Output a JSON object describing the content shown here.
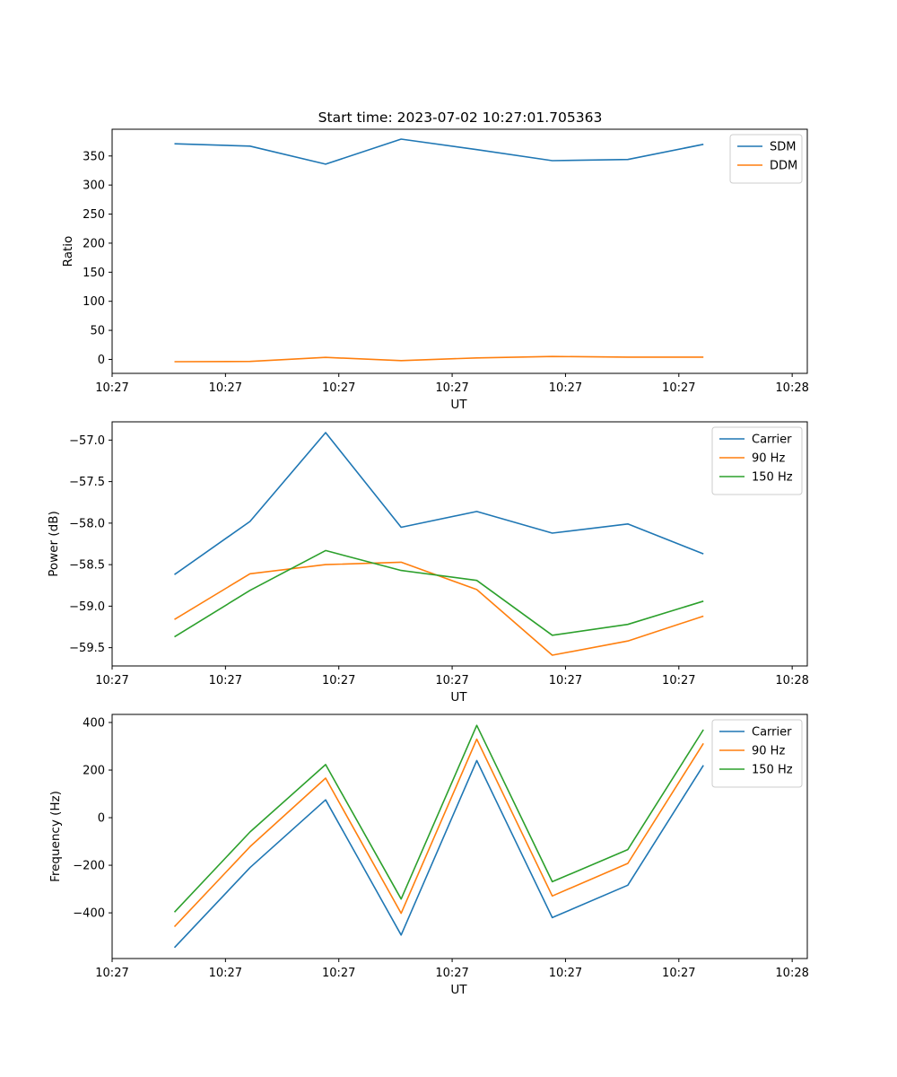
{
  "title": "Start time: 2023-07-02 10:27:01.705363",
  "chart_data": [
    {
      "type": "line",
      "xlabel": "UT",
      "ylabel": "Ratio",
      "x": [
        1,
        2,
        3,
        4,
        5,
        6,
        7,
        8
      ],
      "xlim": [
        0.175,
        9.375
      ],
      "xticks": [
        0.175,
        1.675,
        3.175,
        4.675,
        6.175,
        7.675,
        9.175
      ],
      "xtick_labels": [
        "10:27",
        "10:27",
        "10:27",
        "10:27",
        "10:27",
        "10:27",
        "10:28"
      ],
      "ylim": [
        -24,
        396
      ],
      "yticks": [
        0,
        50,
        100,
        150,
        200,
        250,
        300,
        350
      ],
      "ytick_labels": [
        "0",
        "50",
        "100",
        "150",
        "200",
        "250",
        "300",
        "350"
      ],
      "legend": "top-right",
      "series": [
        {
          "name": "SDM",
          "color": "#1f77b4",
          "values": [
            371,
            367,
            336,
            379,
            361,
            342,
            344,
            370
          ]
        },
        {
          "name": "DDM",
          "color": "#ff7f0e",
          "values": [
            -4,
            -3.5,
            3.5,
            -2,
            2.5,
            5,
            4,
            4
          ]
        }
      ]
    },
    {
      "type": "line",
      "xlabel": "UT",
      "ylabel": "Power (dB)",
      "x": [
        1,
        2,
        3,
        4,
        5,
        6,
        7,
        8
      ],
      "xlim": [
        0.175,
        9.375
      ],
      "xticks": [
        0.175,
        1.675,
        3.175,
        4.675,
        6.175,
        7.675,
        9.175
      ],
      "xtick_labels": [
        "10:27",
        "10:27",
        "10:27",
        "10:27",
        "10:27",
        "10:27",
        "10:28"
      ],
      "ylim": [
        -59.72,
        -56.78
      ],
      "yticks": [
        -59.5,
        -59.0,
        -58.5,
        -58.0,
        -57.5,
        -57.0
      ],
      "ytick_labels": [
        "−59.5",
        "−59.0",
        "−58.5",
        "−58.0",
        "−57.5",
        "−57.0"
      ],
      "legend": "top-right",
      "series": [
        {
          "name": "Carrier",
          "color": "#1f77b4",
          "values": [
            -58.62,
            -57.98,
            -56.91,
            -58.05,
            -57.86,
            -58.12,
            -58.01,
            -58.37
          ]
        },
        {
          "name": "90 Hz",
          "color": "#ff7f0e",
          "values": [
            -59.16,
            -58.61,
            -58.5,
            -58.47,
            -58.8,
            -59.59,
            -59.42,
            -59.12
          ]
        },
        {
          "name": "150 Hz",
          "color": "#2ca02c",
          "values": [
            -59.37,
            -58.81,
            -58.33,
            -58.57,
            -58.69,
            -59.35,
            -59.22,
            -58.94
          ]
        }
      ]
    },
    {
      "type": "line",
      "xlabel": "UT",
      "ylabel": "Frequency (Hz)",
      "x": [
        1,
        2,
        3,
        4,
        5,
        6,
        7,
        8
      ],
      "xlim": [
        0.175,
        9.375
      ],
      "xticks": [
        0.175,
        1.675,
        3.175,
        4.675,
        6.175,
        7.675,
        9.175
      ],
      "xtick_labels": [
        "10:27",
        "10:27",
        "10:27",
        "10:27",
        "10:27",
        "10:27",
        "10:28"
      ],
      "ylim": [
        -592,
        434
      ],
      "yticks": [
        -400,
        -200,
        0,
        200,
        400
      ],
      "ytick_labels": [
        "−400",
        "−200",
        "0",
        "200",
        "400"
      ],
      "legend": "top-right",
      "series": [
        {
          "name": "Carrier",
          "color": "#1f77b4",
          "values": [
            -546,
            -210,
            75,
            -493,
            240,
            -420,
            -284,
            220
          ]
        },
        {
          "name": "90 Hz",
          "color": "#ff7f0e",
          "values": [
            -458,
            -122,
            166,
            -402,
            330,
            -329,
            -192,
            312
          ]
        },
        {
          "name": "150 Hz",
          "color": "#2ca02c",
          "values": [
            -397,
            -60,
            223,
            -342,
            388,
            -269,
            -134,
            370
          ]
        }
      ]
    }
  ]
}
